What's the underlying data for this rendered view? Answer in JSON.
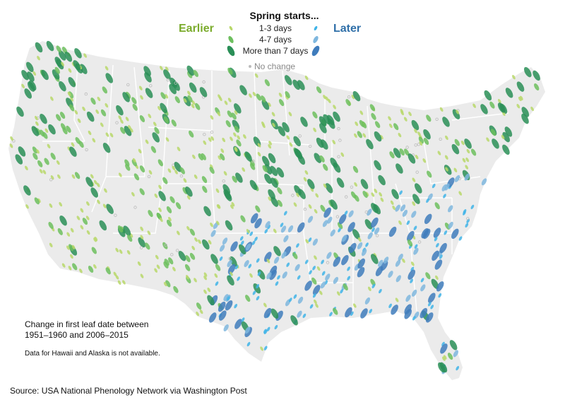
{
  "legend": {
    "title": "Spring starts...",
    "earlier_label": "Earlier",
    "later_label": "Later",
    "categories": [
      {
        "label": "1-3 days",
        "earlier_color": "#b8d86a",
        "later_color": "#3fb4e8"
      },
      {
        "label": "4-7 days",
        "earlier_color": "#6dbf5e",
        "later_color": "#7fb7de"
      },
      {
        "label": "More than 7 days",
        "earlier_color": "#2a8f57",
        "later_color": "#3f7cbc"
      }
    ],
    "no_change_label": "No change",
    "no_change_color": "#bbbbbb"
  },
  "note": {
    "line1": "Change in first leaf date between",
    "line2": "1951–1960 and 2006–2015",
    "availability": "Data for Hawaii and Alaska is not available."
  },
  "source": "Source: USA National Phenology Network via Washington Post",
  "map": {
    "land_color": "#ebebeb",
    "border_color": "#ffffff"
  }
}
